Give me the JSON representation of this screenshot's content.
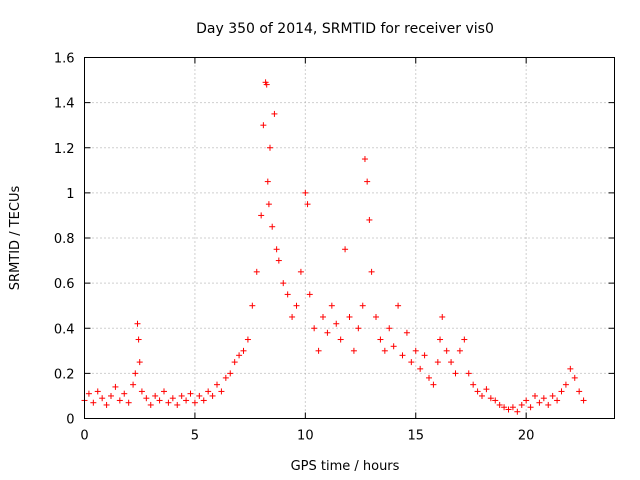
{
  "chart_data": {
    "type": "scatter",
    "title": "Day 350 of 2014, SRMTID for receiver vis0",
    "xlabel": "GPS time / hours",
    "ylabel": "SRMTID / TECUs",
    "xlim": [
      0,
      24
    ],
    "ylim": [
      0,
      1.6
    ],
    "xticks": [
      0,
      5,
      10,
      15,
      20
    ],
    "yticks": [
      0,
      0.2,
      0.4,
      0.6,
      0.8,
      1,
      1.2,
      1.4,
      1.6
    ],
    "xtick_labels": [
      "0",
      "5",
      "10",
      "15",
      "20"
    ],
    "ytick_labels": [
      "0",
      "0.2",
      "0.4",
      "0.6",
      "0.8",
      "1",
      "1.2",
      "1.4",
      "1.6"
    ],
    "grid": true,
    "marker": "+",
    "color": "#ff0000",
    "series": [
      {
        "name": "SRMTID",
        "x": [
          0.0,
          0.2,
          0.4,
          0.6,
          0.8,
          1.0,
          1.2,
          1.4,
          1.6,
          1.8,
          2.0,
          2.2,
          2.3,
          2.4,
          2.45,
          2.5,
          2.6,
          2.8,
          3.0,
          3.2,
          3.4,
          3.6,
          3.8,
          4.0,
          4.2,
          4.4,
          4.6,
          4.8,
          5.0,
          5.2,
          5.4,
          5.6,
          5.8,
          6.0,
          6.2,
          6.4,
          6.6,
          6.8,
          7.0,
          7.2,
          7.4,
          7.6,
          7.8,
          8.0,
          8.1,
          8.2,
          8.25,
          8.3,
          8.35,
          8.4,
          8.5,
          8.6,
          8.7,
          8.8,
          9.0,
          9.2,
          9.4,
          9.6,
          9.8,
          10.0,
          10.1,
          10.2,
          10.4,
          10.6,
          10.8,
          11.0,
          11.2,
          11.4,
          11.6,
          11.8,
          12.0,
          12.2,
          12.4,
          12.6,
          12.7,
          12.8,
          12.9,
          13.0,
          13.2,
          13.4,
          13.6,
          13.8,
          14.0,
          14.2,
          14.4,
          14.6,
          14.8,
          15.0,
          15.2,
          15.4,
          15.6,
          15.8,
          16.0,
          16.1,
          16.2,
          16.4,
          16.6,
          16.8,
          17.0,
          17.2,
          17.4,
          17.6,
          17.8,
          18.0,
          18.2,
          18.4,
          18.6,
          18.8,
          19.0,
          19.2,
          19.4,
          19.6,
          19.8,
          20.0,
          20.2,
          20.4,
          20.6,
          20.8,
          21.0,
          21.2,
          21.4,
          21.6,
          21.8,
          22.0,
          22.2,
          22.4,
          22.6
        ],
        "y": [
          0.08,
          0.11,
          0.07,
          0.12,
          0.09,
          0.06,
          0.1,
          0.14,
          0.08,
          0.11,
          0.07,
          0.15,
          0.2,
          0.42,
          0.35,
          0.25,
          0.12,
          0.09,
          0.06,
          0.1,
          0.08,
          0.12,
          0.07,
          0.09,
          0.06,
          0.1,
          0.08,
          0.11,
          0.07,
          0.1,
          0.08,
          0.12,
          0.1,
          0.15,
          0.12,
          0.18,
          0.2,
          0.25,
          0.28,
          0.3,
          0.35,
          0.5,
          0.65,
          0.9,
          1.3,
          1.49,
          1.48,
          1.05,
          0.95,
          1.2,
          0.85,
          1.35,
          0.75,
          0.7,
          0.6,
          0.55,
          0.45,
          0.5,
          0.65,
          1.0,
          0.95,
          0.55,
          0.4,
          0.3,
          0.45,
          0.38,
          0.5,
          0.42,
          0.35,
          0.75,
          0.45,
          0.3,
          0.4,
          0.5,
          1.15,
          1.05,
          0.88,
          0.65,
          0.45,
          0.35,
          0.3,
          0.4,
          0.32,
          0.5,
          0.28,
          0.38,
          0.25,
          0.3,
          0.22,
          0.28,
          0.18,
          0.15,
          0.25,
          0.35,
          0.45,
          0.3,
          0.25,
          0.2,
          0.3,
          0.35,
          0.2,
          0.15,
          0.12,
          0.1,
          0.13,
          0.09,
          0.08,
          0.06,
          0.05,
          0.04,
          0.05,
          0.03,
          0.06,
          0.08,
          0.05,
          0.1,
          0.07,
          0.09,
          0.06,
          0.1,
          0.08,
          0.12,
          0.15,
          0.22,
          0.18,
          0.12,
          0.08
        ]
      }
    ]
  }
}
